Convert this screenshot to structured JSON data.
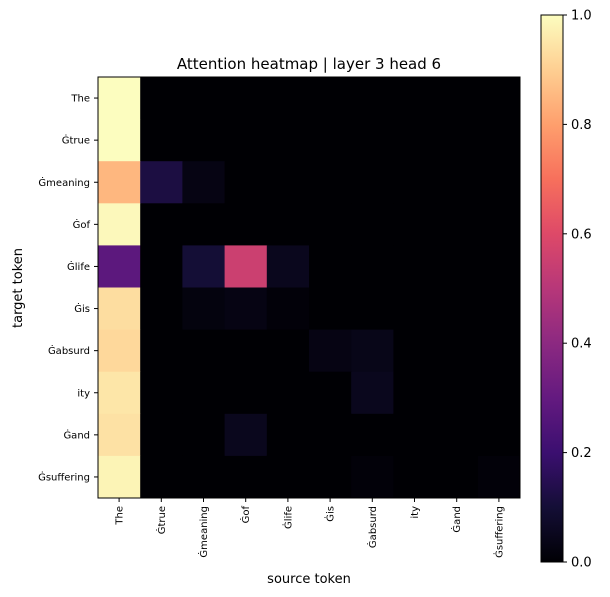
{
  "chart_data": {
    "type": "heatmap",
    "title": "Attention heatmap | layer 3 head 6",
    "xlabel": "source token",
    "ylabel": "target token",
    "x_labels": [
      "The",
      "Ġtrue",
      "Ġmeaning",
      "Ġof",
      "Ġlife",
      "Ġis",
      "Ġabsurd",
      "ity",
      "Ġand",
      "Ġsuffering"
    ],
    "y_labels": [
      "The",
      "Ġtrue",
      "Ġmeaning",
      "Ġof",
      "Ġlife",
      "Ġis",
      "Ġabsurd",
      "ity",
      "Ġand",
      "Ġsuffering"
    ],
    "values": [
      [
        1.0,
        0.0,
        0.0,
        0.0,
        0.0,
        0.0,
        0.0,
        0.0,
        0.0,
        0.0
      ],
      [
        1.0,
        0.0,
        0.0,
        0.0,
        0.0,
        0.0,
        0.0,
        0.0,
        0.0,
        0.0
      ],
      [
        0.85,
        0.12,
        0.03,
        0.0,
        0.0,
        0.0,
        0.0,
        0.0,
        0.0,
        0.0
      ],
      [
        0.99,
        0.0,
        0.0,
        0.0,
        0.0,
        0.0,
        0.0,
        0.0,
        0.0,
        0.0
      ],
      [
        0.28,
        0.0,
        0.1,
        0.55,
        0.05,
        0.0,
        0.0,
        0.0,
        0.0,
        0.0
      ],
      [
        0.93,
        0.0,
        0.02,
        0.03,
        0.01,
        0.0,
        0.0,
        0.0,
        0.0,
        0.0
      ],
      [
        0.92,
        0.0,
        0.0,
        0.0,
        0.0,
        0.03,
        0.04,
        0.0,
        0.0,
        0.0
      ],
      [
        0.95,
        0.0,
        0.0,
        0.0,
        0.0,
        0.0,
        0.05,
        0.0,
        0.0,
        0.0
      ],
      [
        0.94,
        0.0,
        0.0,
        0.05,
        0.0,
        0.0,
        0.0,
        0.0,
        0.0,
        0.0
      ],
      [
        0.98,
        0.0,
        0.0,
        0.0,
        0.0,
        0.0,
        0.01,
        0.0,
        0.0,
        0.01
      ]
    ],
    "colormap": "magma",
    "vmin": 0.0,
    "vmax": 1.0,
    "colorbar_ticks": [
      "0.0",
      "0.2",
      "0.4",
      "0.6",
      "0.8",
      "1.0"
    ]
  }
}
